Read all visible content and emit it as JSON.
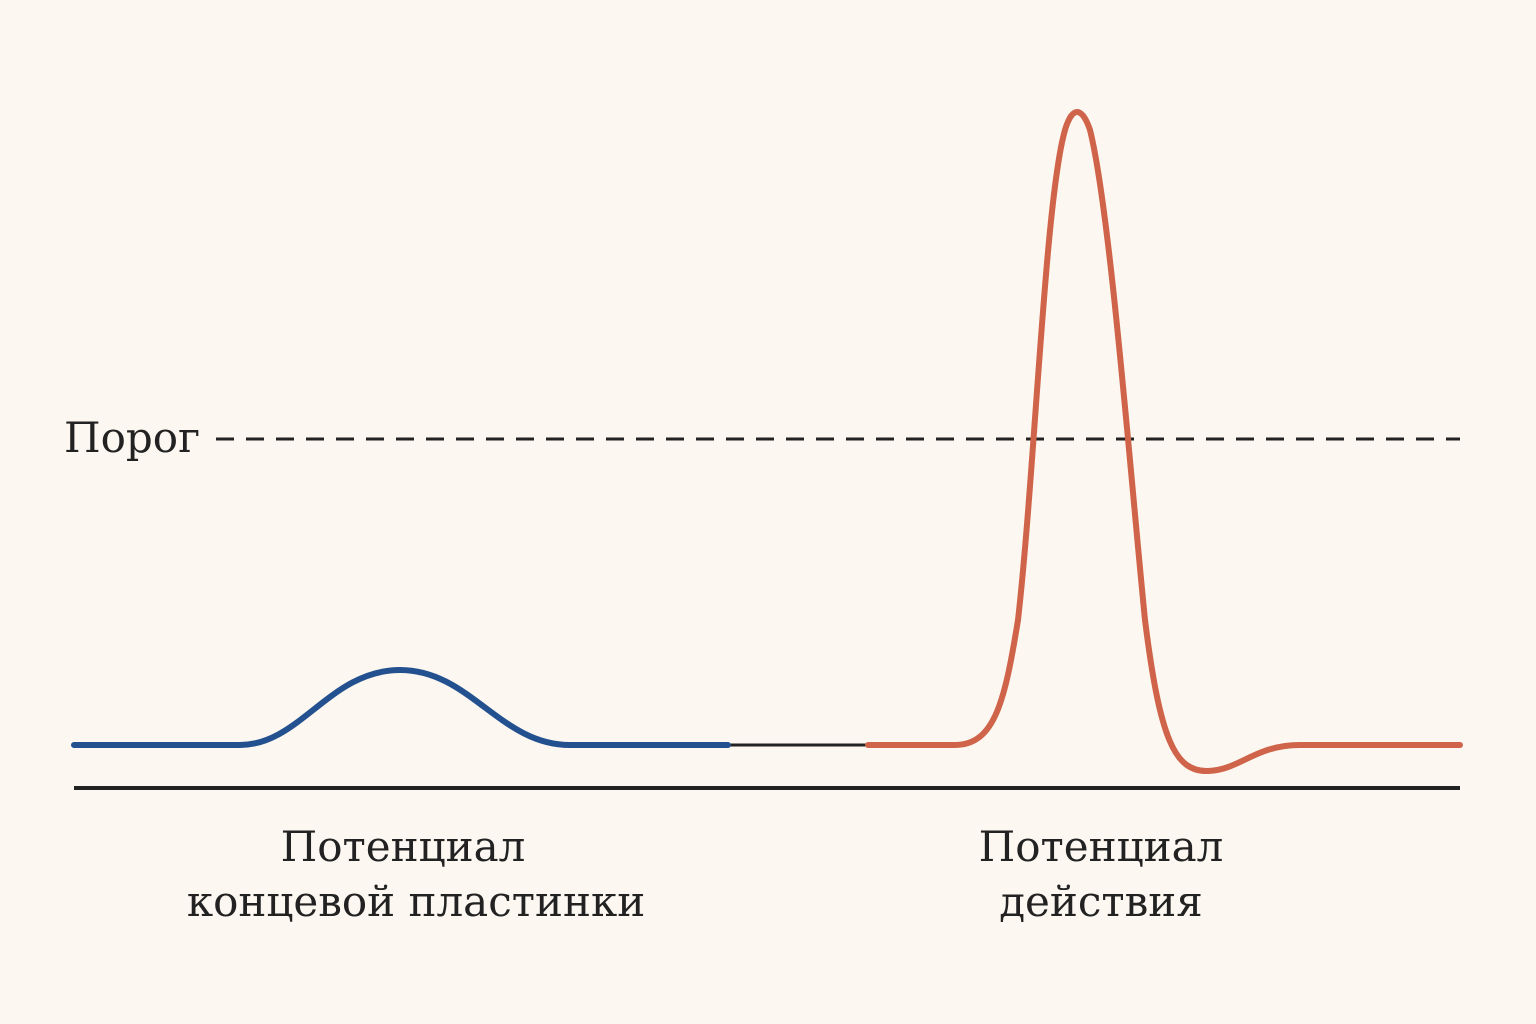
{
  "colors": {
    "background": "#fcf7f0",
    "end_plate_trace": "#23508f",
    "action_potential_trace": "#cf644a",
    "axis": "#222222",
    "threshold_line": "#222222",
    "connector": "#222222"
  },
  "threshold": {
    "label": "Порог"
  },
  "labels": {
    "end_plate": {
      "line1": "Потенциал",
      "line2": "концевой пластинки"
    },
    "action": {
      "line1": "Потенциал",
      "line2": "действия"
    }
  }
}
